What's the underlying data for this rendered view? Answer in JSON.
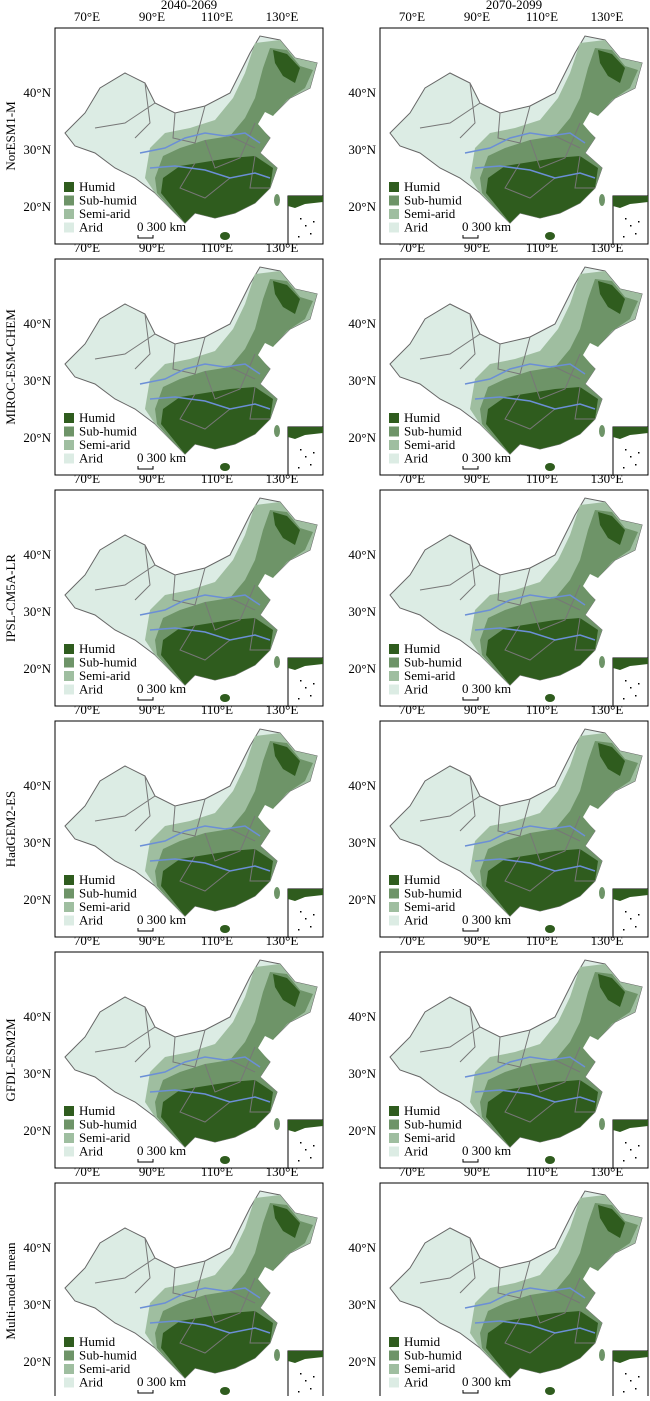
{
  "columns": [
    "2040-2069",
    "2070-2099"
  ],
  "rows": [
    "NorESM1-M",
    "MIROC-ESM-CHEM",
    "IPSL-CM5A-LR",
    "HadGEM2-ES",
    "GFDL-ESM2M",
    "Multi-model mean"
  ],
  "x_ticks": [
    "70°E",
    "90°E",
    "110°E",
    "130°E"
  ],
  "y_ticks": [
    "40°N",
    "30°N",
    "20°N"
  ],
  "legend": [
    {
      "label": "Humid",
      "color": "#2f5c1e"
    },
    {
      "label": "Sub-humid",
      "color": "#6e9468"
    },
    {
      "label": "Semi-arid",
      "color": "#9fbea0"
    },
    {
      "label": "Arid",
      "color": "#dcece4"
    }
  ],
  "scale_bar": "0 300 km"
}
